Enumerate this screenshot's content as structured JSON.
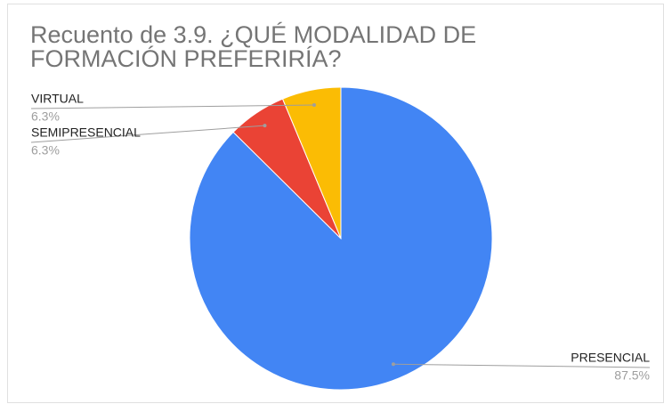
{
  "chart_data": {
    "type": "pie",
    "title": "Recuento de 3.9. ¿QUÉ MODALIDAD DE FORMACIÓN PREFERIRÍA?",
    "categories": [
      "PRESENCIAL",
      "SEMIPRESENCIAL",
      "VIRTUAL"
    ],
    "values": [
      87.5,
      6.3,
      6.3
    ],
    "value_labels": [
      "87.5%",
      "6.3%",
      "6.3%"
    ],
    "colors": [
      "#4285f4",
      "#ea4335",
      "#fbbc04"
    ]
  }
}
